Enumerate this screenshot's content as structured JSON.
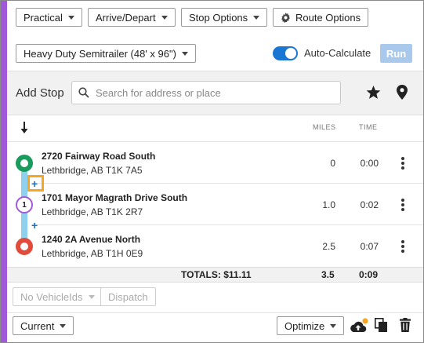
{
  "toolbar": {
    "route_type": "Practical",
    "arrive_depart": "Arrive/Depart",
    "stop_options": "Stop Options",
    "route_options": "Route Options"
  },
  "vehicle": {
    "selected": "Heavy Duty Semitrailer (48' x 96\")"
  },
  "auto_calculate": {
    "label": "Auto-Calculate",
    "enabled": true
  },
  "run_button": "Run",
  "add_stop": {
    "label": "Add Stop",
    "search_placeholder": "Search for address or place"
  },
  "table": {
    "col_miles": "MILES",
    "col_time": "TIME"
  },
  "stops": [
    {
      "marker": "origin",
      "name": "2720 Fairway Road South",
      "address": "Lethbridge, AB T1K 7A5",
      "miles": "0",
      "time": "0:00"
    },
    {
      "marker": "1",
      "name": "1701 Mayor Magrath Drive South",
      "address": "Lethbridge, AB T1K 2R7",
      "miles": "1.0",
      "time": "0:02"
    },
    {
      "marker": "destination",
      "name": "1240 2A Avenue North",
      "address": "Lethbridge, AB T1H 0E9",
      "miles": "2.5",
      "time": "0:07"
    }
  ],
  "add_between": "+",
  "totals": {
    "label": "TOTALS: $11.11",
    "miles": "3.5",
    "time": "0:09"
  },
  "fleet": {
    "vehicle_ids": "No VehicleIds",
    "dispatch": "Dispatch"
  },
  "footer": {
    "view": "Current",
    "optimize": "Optimize"
  },
  "colors": {
    "accent": "#a259d9",
    "origin": "#1a9a5c",
    "waypoint": "#a259d9",
    "destination": "#e04b3c",
    "route": "#8fd0ee",
    "highlight": "#f5a623",
    "primary": "#1976d2"
  }
}
